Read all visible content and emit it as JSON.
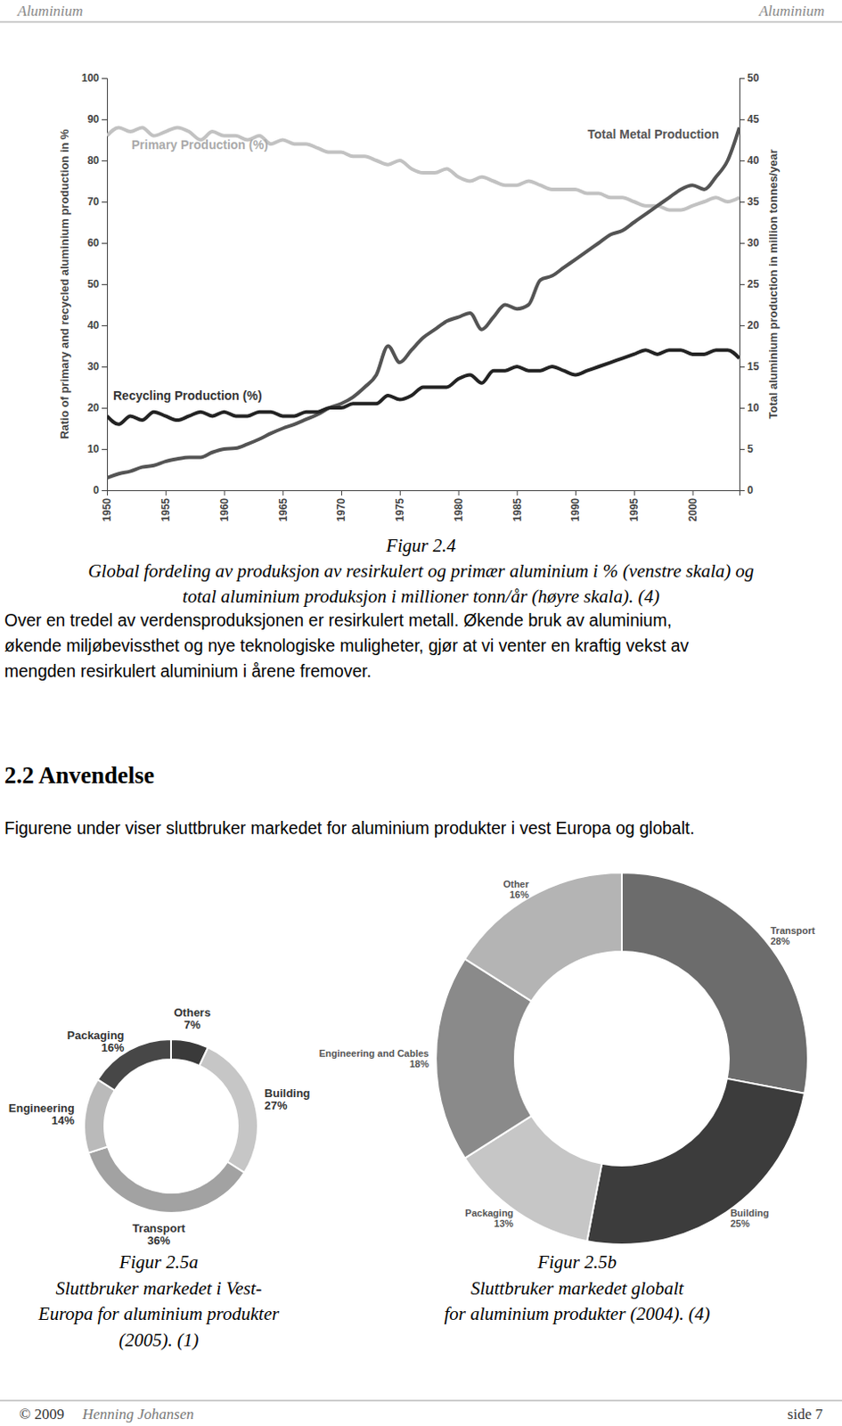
{
  "header": {
    "left": "Aluminium",
    "right": "Aluminium"
  },
  "chart_data": [
    {
      "type": "line",
      "y_label": "Ratio of primary and recycled aluminium production in %",
      "y2_label": "Total aluminium production in million tonnes/year",
      "x": [
        1950,
        1951,
        1952,
        1953,
        1954,
        1955,
        1956,
        1957,
        1958,
        1959,
        1960,
        1961,
        1962,
        1963,
        1964,
        1965,
        1966,
        1967,
        1968,
        1969,
        1970,
        1971,
        1972,
        1973,
        1974,
        1975,
        1976,
        1977,
        1978,
        1979,
        1980,
        1981,
        1982,
        1983,
        1984,
        1985,
        1986,
        1987,
        1988,
        1989,
        1990,
        1991,
        1992,
        1993,
        1994,
        1995,
        1996,
        1997,
        1998,
        1999,
        2000,
        2001,
        2002,
        2003,
        2004
      ],
      "series": [
        {
          "name": "Primary Production (%)",
          "color": "#c2c2c2",
          "values": [
            86,
            88,
            87,
            88,
            86,
            87,
            88,
            87,
            85,
            87,
            86,
            86,
            85,
            86,
            84,
            85,
            84,
            84,
            83,
            82,
            82,
            81,
            81,
            80,
            79,
            80,
            78,
            77,
            77,
            78,
            76,
            75,
            76,
            75,
            74,
            74,
            75,
            74,
            73,
            73,
            73,
            72,
            72,
            71,
            71,
            70,
            69,
            69,
            68,
            68,
            69,
            70,
            71,
            70,
            71
          ]
        },
        {
          "name": "Total Metal Production",
          "color": "#545454",
          "axis": "y2",
          "values": [
            1.5,
            2.0,
            2.3,
            2.8,
            3.0,
            3.5,
            3.8,
            4.0,
            4.0,
            4.6,
            5.0,
            5.1,
            5.6,
            6.2,
            6.9,
            7.5,
            8.0,
            8.6,
            9.2,
            10.0,
            10.5,
            11.3,
            12.5,
            14.0,
            17.5,
            15.5,
            17.0,
            18.5,
            19.5,
            20.5,
            21.0,
            21.5,
            19.5,
            21.0,
            22.5,
            22.0,
            22.5,
            25.5,
            26.0,
            27.0,
            28.0,
            29.0,
            30.0,
            31.0,
            31.5,
            32.5,
            33.5,
            34.5,
            35.5,
            36.5,
            37.0,
            36.5,
            38.0,
            40.0,
            44.0
          ]
        },
        {
          "name": "Recycling Production (%)",
          "color": "#232323",
          "values": [
            18,
            16,
            18,
            17,
            19,
            18,
            17,
            18,
            19,
            18,
            19,
            18,
            18,
            19,
            19,
            18,
            18,
            19,
            19,
            20,
            20,
            21,
            21,
            21,
            23,
            22,
            23,
            25,
            25,
            25,
            27,
            28,
            26,
            29,
            29,
            30,
            29,
            29,
            30,
            29,
            28,
            29,
            30,
            31,
            32,
            33,
            34,
            33,
            34,
            34,
            33,
            33,
            34,
            34,
            32
          ]
        }
      ],
      "xlim": [
        1950,
        2004
      ],
      "xticks": [
        1950,
        1955,
        1960,
        1965,
        1970,
        1975,
        1980,
        1985,
        1990,
        1995,
        2000
      ],
      "ylim": [
        0,
        100
      ],
      "yticks": [
        0,
        10,
        20,
        30,
        40,
        50,
        60,
        70,
        80,
        90,
        100
      ],
      "y2lim": [
        0,
        50
      ],
      "y2ticks": [
        0,
        5,
        10,
        15,
        20,
        25,
        30,
        35,
        40,
        45,
        50
      ]
    },
    {
      "type": "donut",
      "categories": [
        "Others",
        "Building",
        "Transport",
        "Engineering",
        "Packaging"
      ],
      "values": [
        7,
        27,
        36,
        14,
        16
      ],
      "value_labels": [
        "7%",
        "27%",
        "36%",
        "14%",
        "16%"
      ],
      "colors": [
        "#3a3a3a",
        "#c6c6c6",
        "#a2a2a2",
        "#bababa",
        "#474747"
      ],
      "data_labels": true
    },
    {
      "type": "donut",
      "categories": [
        "Transport",
        "Building",
        "Packaging",
        "Engineering and Cables",
        "Other"
      ],
      "values": [
        28,
        25,
        13,
        18,
        16
      ],
      "value_labels": [
        "28%",
        "25%",
        "13%",
        "18%",
        "16%"
      ],
      "colors": [
        "#6c6c6c",
        "#3c3c3c",
        "#c6c6c6",
        "#8a8a8a",
        "#b4b4b4"
      ],
      "data_labels": true
    }
  ],
  "captions": [
    {
      "lines": [
        "Figur 2.4",
        "Global fordeling av produksjon av resirkulert og primær aluminium i % (venstre skala) og",
        "total aluminium produksjon i millioner tonn/år (høyre skala). (4)"
      ]
    },
    {
      "lines": [
        "Figur 2.5a",
        "Sluttbruker markedet i Vest-",
        "Europa for aluminium produkter",
        "(2005). (1)"
      ]
    },
    {
      "lines": [
        "Figur 2.5b",
        "Sluttbruker markedet globalt",
        "for aluminium produkter (2004). (4)"
      ]
    }
  ],
  "paragraph_1": {
    "lines": [
      "Over en tredel av verdensproduksjonen er resirkulert metall. Økende bruk av aluminium,",
      "økende miljøbevissthet og nye teknologiske muligheter, gjør at vi venter en kraftig vekst av",
      "mengden resirkulert aluminium i årene fremover."
    ]
  },
  "heading": "2.2 Anvendelse",
  "paragraph_2": {
    "lines": [
      "Figurene under viser sluttbruker markedet for aluminium produkter i vest Europa og globalt."
    ]
  },
  "footer": {
    "copyright": "© 2009",
    "author": "Henning Johansen",
    "page": "side 7"
  }
}
